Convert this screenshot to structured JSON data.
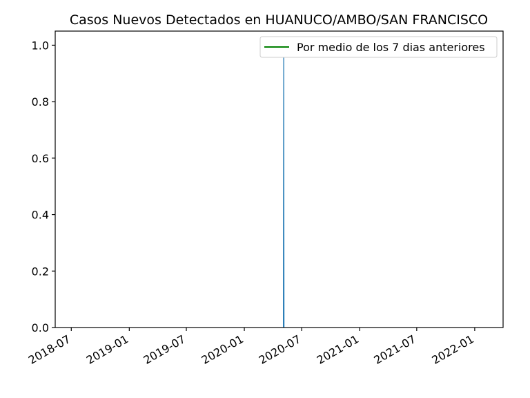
{
  "chart_data": {
    "type": "line",
    "title": "Casos Nuevos Detectados en HUANUCO/AMBO/SAN FRANCISCO",
    "xlabel": "",
    "ylabel": "",
    "x_type": "date",
    "xlim": [
      "2018-05-11",
      "2022-04-01"
    ],
    "ylim": [
      0.0,
      1.05
    ],
    "x_ticks": [
      "2018-07",
      "2019-01",
      "2019-07",
      "2020-01",
      "2020-07",
      "2021-01",
      "2021-07",
      "2022-01"
    ],
    "y_ticks": [
      "0.0",
      "0.2",
      "0.4",
      "0.6",
      "0.8",
      "1.0"
    ],
    "grid": false,
    "legend_position": "top-right",
    "series": [
      {
        "name": "",
        "color": "#1f77b4",
        "x": [
          "2020-05-04",
          "2020-05-05",
          "2020-05-06"
        ],
        "y": [
          0,
          1,
          0
        ]
      },
      {
        "name": "Por medio de los 7 dias anteriores",
        "color": "#008000",
        "x": [],
        "y": []
      }
    ]
  }
}
